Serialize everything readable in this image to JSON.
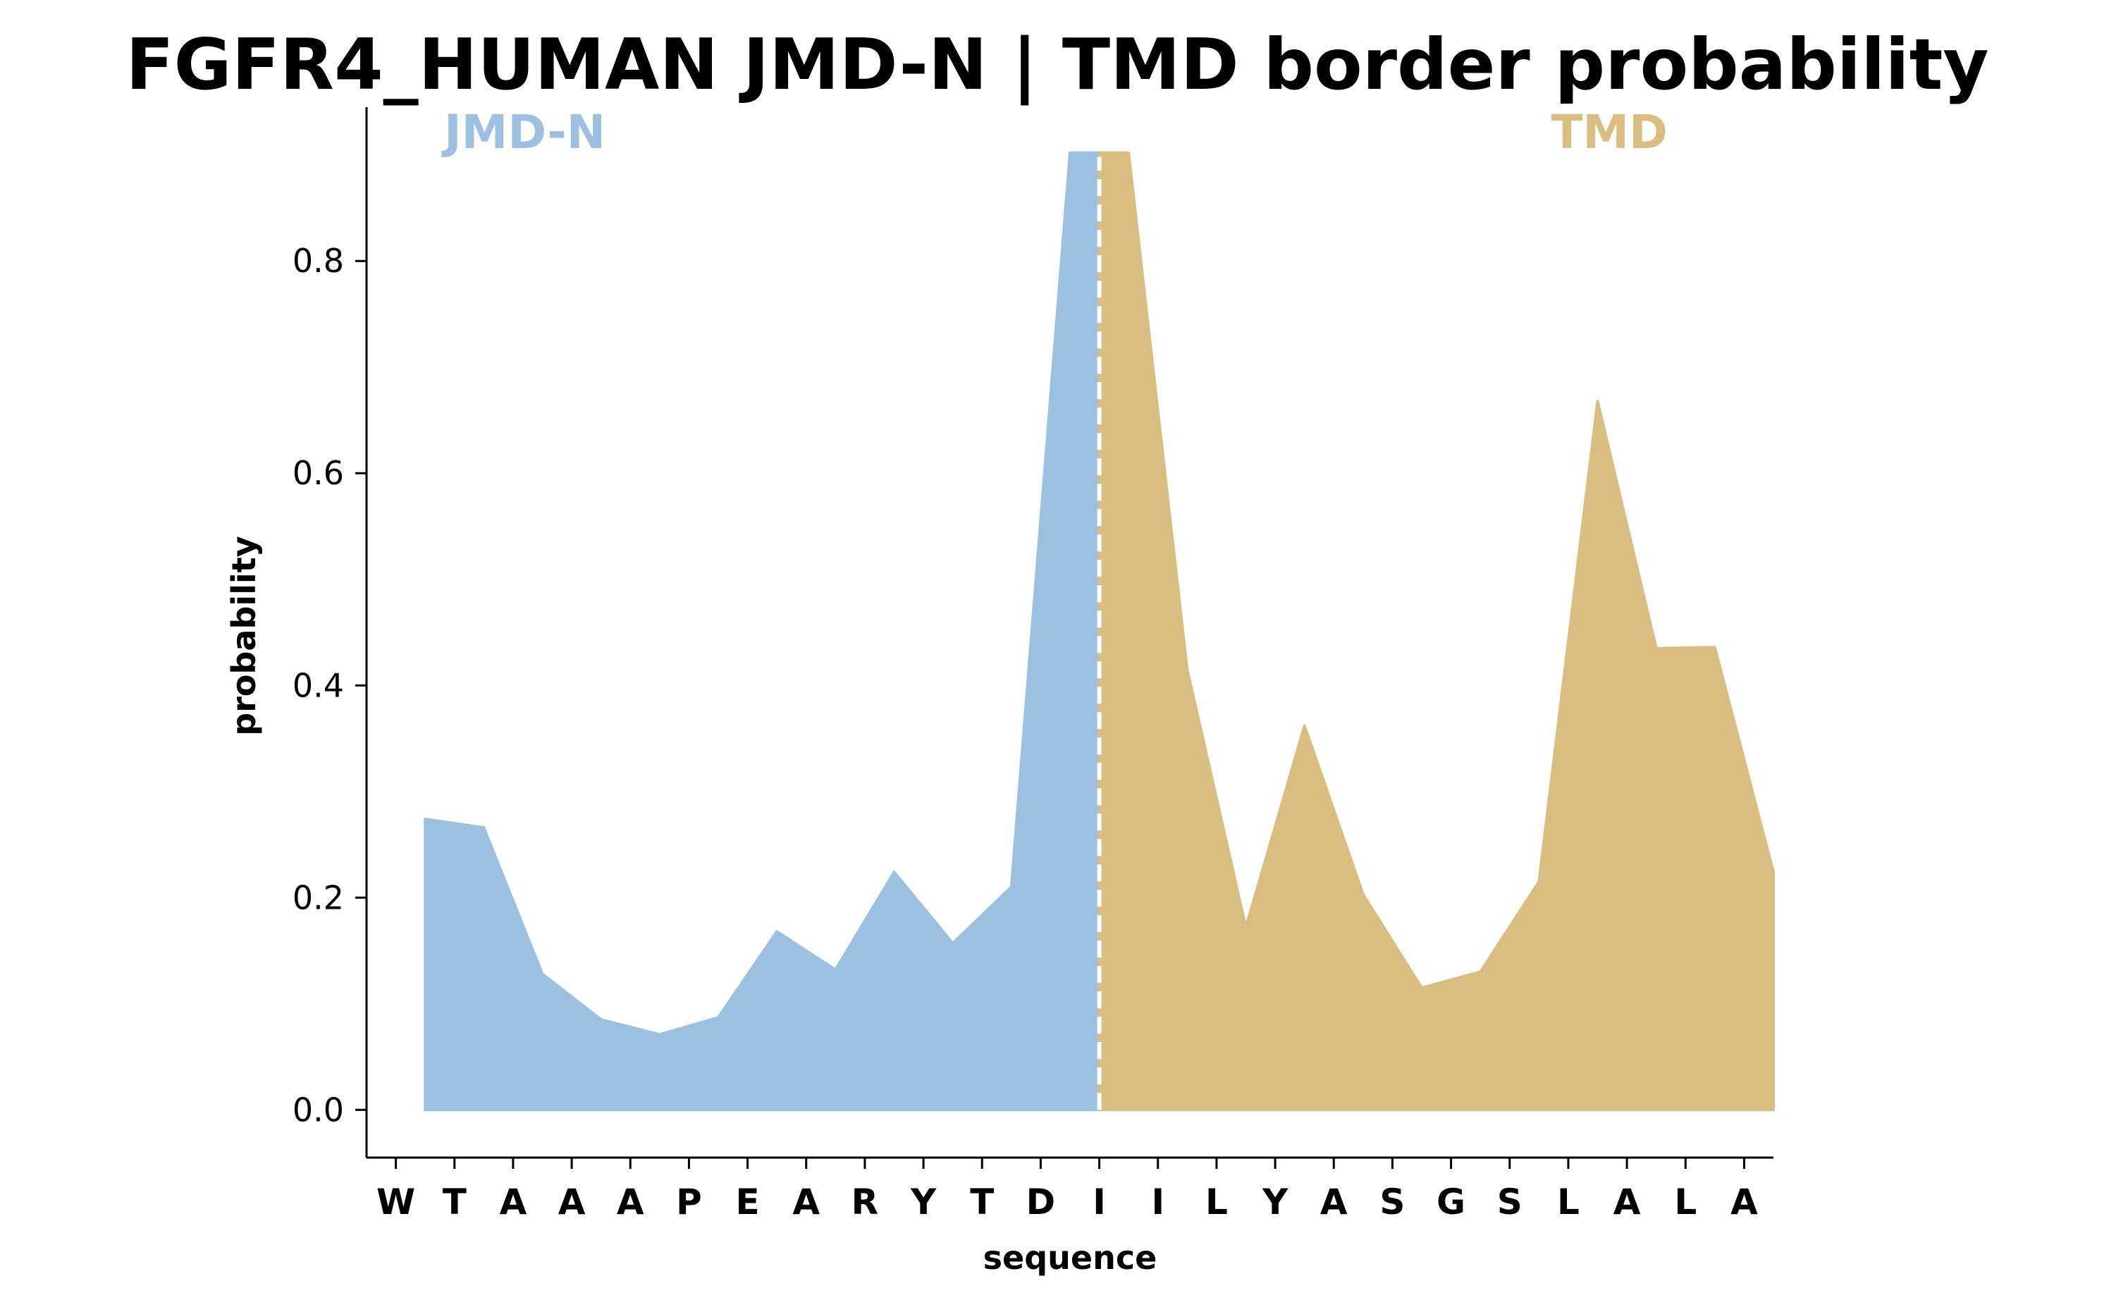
{
  "chart_data": {
    "type": "area",
    "title": "FGFR4_HUMAN JMD-N | TMD border probability",
    "xlabel": "sequence",
    "ylabel": "probability",
    "categories": [
      "W",
      "T",
      "A",
      "A",
      "A",
      "P",
      "E",
      "A",
      "R",
      "Y",
      "T",
      "D",
      "I",
      "I",
      "L",
      "Y",
      "A",
      "S",
      "G",
      "S",
      "L",
      "A",
      "L",
      "A"
    ],
    "ylim": [
      -0.045,
      0.945
    ],
    "yticks": [
      0.0,
      0.2,
      0.4,
      0.6,
      0.8
    ],
    "ytick_labels": [
      "0.0",
      "0.2",
      "0.4",
      "0.6",
      "0.8"
    ],
    "grid": false,
    "border_label_left": "JMD-N",
    "border_label_right": "TMD",
    "series": [
      {
        "name": "JMD-N",
        "color": "#9bc0e0",
        "x": [
          0.5,
          1.5,
          2.5,
          3.5,
          4.5,
          5.5,
          6.5,
          7.5,
          8.5,
          9.5,
          10.5,
          11.5,
          12.0
        ],
        "y": [
          0.274,
          0.266,
          0.128,
          0.085,
          0.071,
          0.087,
          0.168,
          0.132,
          0.224,
          0.157,
          0.21,
          0.902,
          0.902
        ]
      },
      {
        "name": "TMD",
        "color": "#dabe81",
        "x": [
          12.0,
          12.5,
          13.5,
          14.5,
          15.5,
          16.5,
          17.5,
          18.5,
          19.5,
          20.5,
          21.5,
          22.5,
          23.5
        ],
        "y": [
          0.902,
          0.902,
          0.415,
          0.172,
          0.362,
          0.203,
          0.115,
          0.13,
          0.215,
          0.668,
          0.435,
          0.436,
          0.224
        ]
      }
    ],
    "border_x": 12.0,
    "border_line_color": "#ffffff",
    "colors": {
      "jmd": "#9bc0e0",
      "tmd": "#dabe81"
    }
  }
}
